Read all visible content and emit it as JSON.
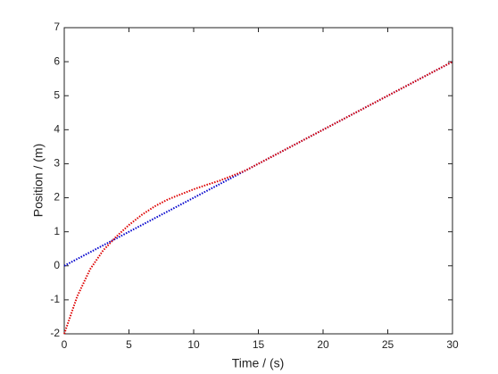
{
  "chart_data": {
    "type": "line",
    "xlabel": "Time / (s)",
    "ylabel": "Position / (m)",
    "x": [
      0,
      1,
      2,
      3,
      4,
      5,
      6,
      7,
      8,
      9,
      10,
      11,
      12,
      13,
      14,
      15,
      16,
      17,
      18,
      19,
      20,
      21,
      22,
      23,
      24,
      25,
      26,
      27,
      28,
      29,
      30
    ],
    "series": [
      {
        "color": "#0000cc",
        "values": [
          0,
          0.2,
          0.4,
          0.6,
          0.8,
          1,
          1.2,
          1.4,
          1.6,
          1.8,
          2,
          2.2,
          2.4,
          2.6,
          2.8,
          3,
          3.2,
          3.4,
          3.6,
          3.8,
          4,
          4.2,
          4.4,
          4.6,
          4.8,
          5,
          5.2,
          5.4,
          5.6,
          5.8,
          6
        ]
      },
      {
        "color": "#dd0000",
        "values": [
          -2,
          -0.9,
          -0.1,
          0.45,
          0.85,
          1.2,
          1.5,
          1.75,
          1.95,
          2.1,
          2.25,
          2.38,
          2.5,
          2.65,
          2.8,
          3,
          3.2,
          3.4,
          3.6,
          3.8,
          4,
          4.2,
          4.4,
          4.6,
          4.8,
          5,
          5.2,
          5.4,
          5.6,
          5.8,
          6
        ]
      }
    ],
    "xlim": [
      0,
      30
    ],
    "xticks": [
      0,
      5,
      10,
      15,
      20,
      25,
      30
    ],
    "ylim": [
      -2,
      7
    ],
    "yticks": [
      -2,
      -1,
      0,
      1,
      2,
      3,
      4,
      5,
      6,
      7
    ],
    "grid": false
  }
}
